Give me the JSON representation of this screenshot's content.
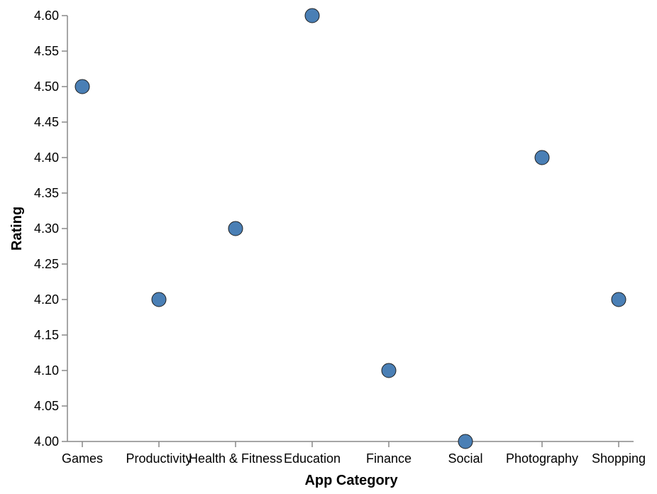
{
  "colors": {
    "point_fill": "#4a7fb5",
    "point_stroke": "#1f1f1f",
    "axis": "#888888"
  },
  "chart_data": {
    "type": "scatter",
    "xlabel": "App Category",
    "ylabel": "Rating",
    "categories": [
      "Games",
      "Productivity",
      "Health & Fitness",
      "Education",
      "Finance",
      "Social",
      "Photography",
      "Shopping"
    ],
    "values": [
      4.5,
      4.2,
      4.3,
      4.6,
      4.1,
      4.0,
      4.4,
      4.2
    ],
    "ylim": [
      4.0,
      4.6
    ],
    "yticks": [
      "4.00",
      "4.05",
      "4.10",
      "4.15",
      "4.20",
      "4.25",
      "4.30",
      "4.35",
      "4.40",
      "4.45",
      "4.50",
      "4.55",
      "4.60"
    ],
    "grid": false,
    "legend": "none"
  }
}
